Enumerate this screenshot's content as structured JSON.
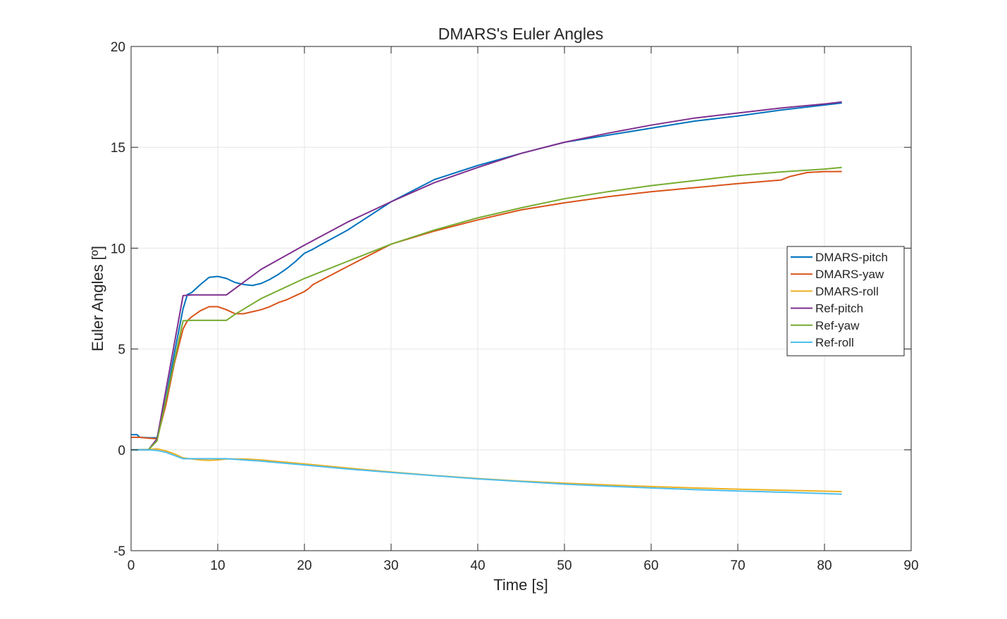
{
  "chart_data": {
    "type": "line",
    "title": "DMARS's Euler Angles",
    "xlabel": "Time [s]",
    "ylabel": "Euler Angles [º]",
    "xlim": [
      0,
      90
    ],
    "ylim": [
      -5,
      20
    ],
    "xticks": [
      0,
      10,
      20,
      30,
      40,
      50,
      60,
      70,
      80,
      90
    ],
    "xtick_labels": [
      "0",
      "10",
      "20",
      "30",
      "40",
      "50",
      "60",
      "70",
      "80",
      "90"
    ],
    "yticks": [
      -5,
      0,
      5,
      10,
      15,
      20
    ],
    "ytick_labels": [
      "-5",
      "0",
      "5",
      "10",
      "15",
      "20"
    ],
    "grid": true,
    "legend_position": "right",
    "series": [
      {
        "name": "DMARS-pitch",
        "color": "#0072BD",
        "x": [
          0,
          0.7,
          1,
          2,
          3,
          4,
          5,
          6,
          6.5,
          7,
          8,
          9,
          10,
          11,
          12,
          13,
          14,
          15,
          16,
          17,
          18,
          19,
          20,
          21,
          22,
          25,
          30,
          35,
          40,
          45,
          50,
          55,
          60,
          65,
          70,
          75,
          80,
          82
        ],
        "y": [
          0.75,
          0.75,
          0.62,
          0.6,
          0.6,
          2.5,
          4.8,
          7.0,
          7.7,
          7.8,
          8.2,
          8.55,
          8.6,
          8.5,
          8.3,
          8.2,
          8.15,
          8.25,
          8.45,
          8.7,
          9.0,
          9.35,
          9.75,
          9.95,
          10.2,
          10.9,
          12.3,
          13.4,
          14.1,
          14.7,
          15.25,
          15.6,
          15.95,
          16.3,
          16.55,
          16.85,
          17.1,
          17.2
        ]
      },
      {
        "name": "DMARS-yaw",
        "color": "#D95319",
        "x": [
          0,
          1,
          2,
          3,
          4,
          5,
          6,
          6.5,
          7,
          8,
          9,
          10,
          11,
          12,
          13,
          14,
          15,
          16,
          17,
          18,
          19,
          20,
          20.5,
          21,
          25,
          30,
          35,
          40,
          45,
          50,
          55,
          60,
          65,
          70,
          75,
          76,
          78,
          80,
          82
        ],
        "y": [
          0.62,
          0.62,
          0.58,
          0.55,
          2.2,
          4.3,
          6.0,
          6.4,
          6.6,
          6.9,
          7.1,
          7.1,
          6.95,
          6.75,
          6.75,
          6.85,
          6.95,
          7.1,
          7.3,
          7.45,
          7.65,
          7.85,
          8.0,
          8.2,
          9.1,
          10.2,
          10.85,
          11.4,
          11.9,
          12.25,
          12.55,
          12.8,
          13.0,
          13.2,
          13.38,
          13.55,
          13.75,
          13.8,
          13.8
        ]
      },
      {
        "name": "DMARS-roll",
        "color": "#EDB120",
        "x": [
          0,
          2,
          3,
          4,
          5,
          6,
          7,
          8,
          9,
          10,
          11,
          12,
          13,
          15,
          20,
          25,
          30,
          35,
          40,
          45,
          50,
          55,
          60,
          65,
          70,
          75,
          80,
          82
        ],
        "y": [
          0.0,
          0.02,
          0.05,
          -0.05,
          -0.2,
          -0.4,
          -0.45,
          -0.5,
          -0.52,
          -0.5,
          -0.45,
          -0.45,
          -0.45,
          -0.5,
          -0.7,
          -0.9,
          -1.1,
          -1.27,
          -1.42,
          -1.55,
          -1.65,
          -1.74,
          -1.82,
          -1.89,
          -1.95,
          -2.0,
          -2.05,
          -2.07
        ]
      },
      {
        "name": "Ref-pitch",
        "color": "#7E2F8E",
        "x": [
          0,
          2,
          3,
          6,
          7,
          8,
          9,
          10,
          11,
          12,
          15,
          20,
          25,
          30,
          35,
          40,
          45,
          50,
          55,
          60,
          65,
          70,
          75,
          80,
          82
        ],
        "y": [
          0.0,
          0.0,
          0.55,
          7.65,
          7.68,
          7.68,
          7.68,
          7.68,
          7.68,
          8.0,
          8.95,
          10.15,
          11.3,
          12.3,
          13.25,
          14.0,
          14.7,
          15.25,
          15.7,
          16.1,
          16.45,
          16.7,
          16.95,
          17.15,
          17.25
        ]
      },
      {
        "name": "Ref-yaw",
        "color": "#77AC30",
        "x": [
          0,
          2,
          3,
          6,
          7,
          8,
          9,
          10,
          11,
          12,
          15,
          20,
          25,
          30,
          35,
          40,
          45,
          50,
          55,
          60,
          65,
          70,
          75,
          80,
          82
        ],
        "y": [
          0.0,
          0.0,
          0.45,
          6.4,
          6.42,
          6.42,
          6.42,
          6.42,
          6.42,
          6.72,
          7.5,
          8.5,
          9.35,
          10.2,
          10.9,
          11.5,
          12.0,
          12.45,
          12.8,
          13.1,
          13.35,
          13.6,
          13.78,
          13.92,
          14.0
        ]
      },
      {
        "name": "Ref-roll",
        "color": "#4DBEEE",
        "x": [
          0,
          2,
          3,
          4,
          5,
          6,
          7,
          8,
          9,
          10,
          11,
          12,
          13,
          15,
          20,
          25,
          30,
          35,
          40,
          45,
          50,
          55,
          60,
          65,
          70,
          75,
          80,
          82
        ],
        "y": [
          0.0,
          0.0,
          -0.03,
          -0.12,
          -0.28,
          -0.44,
          -0.44,
          -0.44,
          -0.44,
          -0.44,
          -0.44,
          -0.47,
          -0.5,
          -0.56,
          -0.75,
          -0.95,
          -1.12,
          -1.28,
          -1.44,
          -1.57,
          -1.7,
          -1.8,
          -1.89,
          -1.97,
          -2.04,
          -2.1,
          -2.17,
          -2.2
        ]
      }
    ]
  }
}
